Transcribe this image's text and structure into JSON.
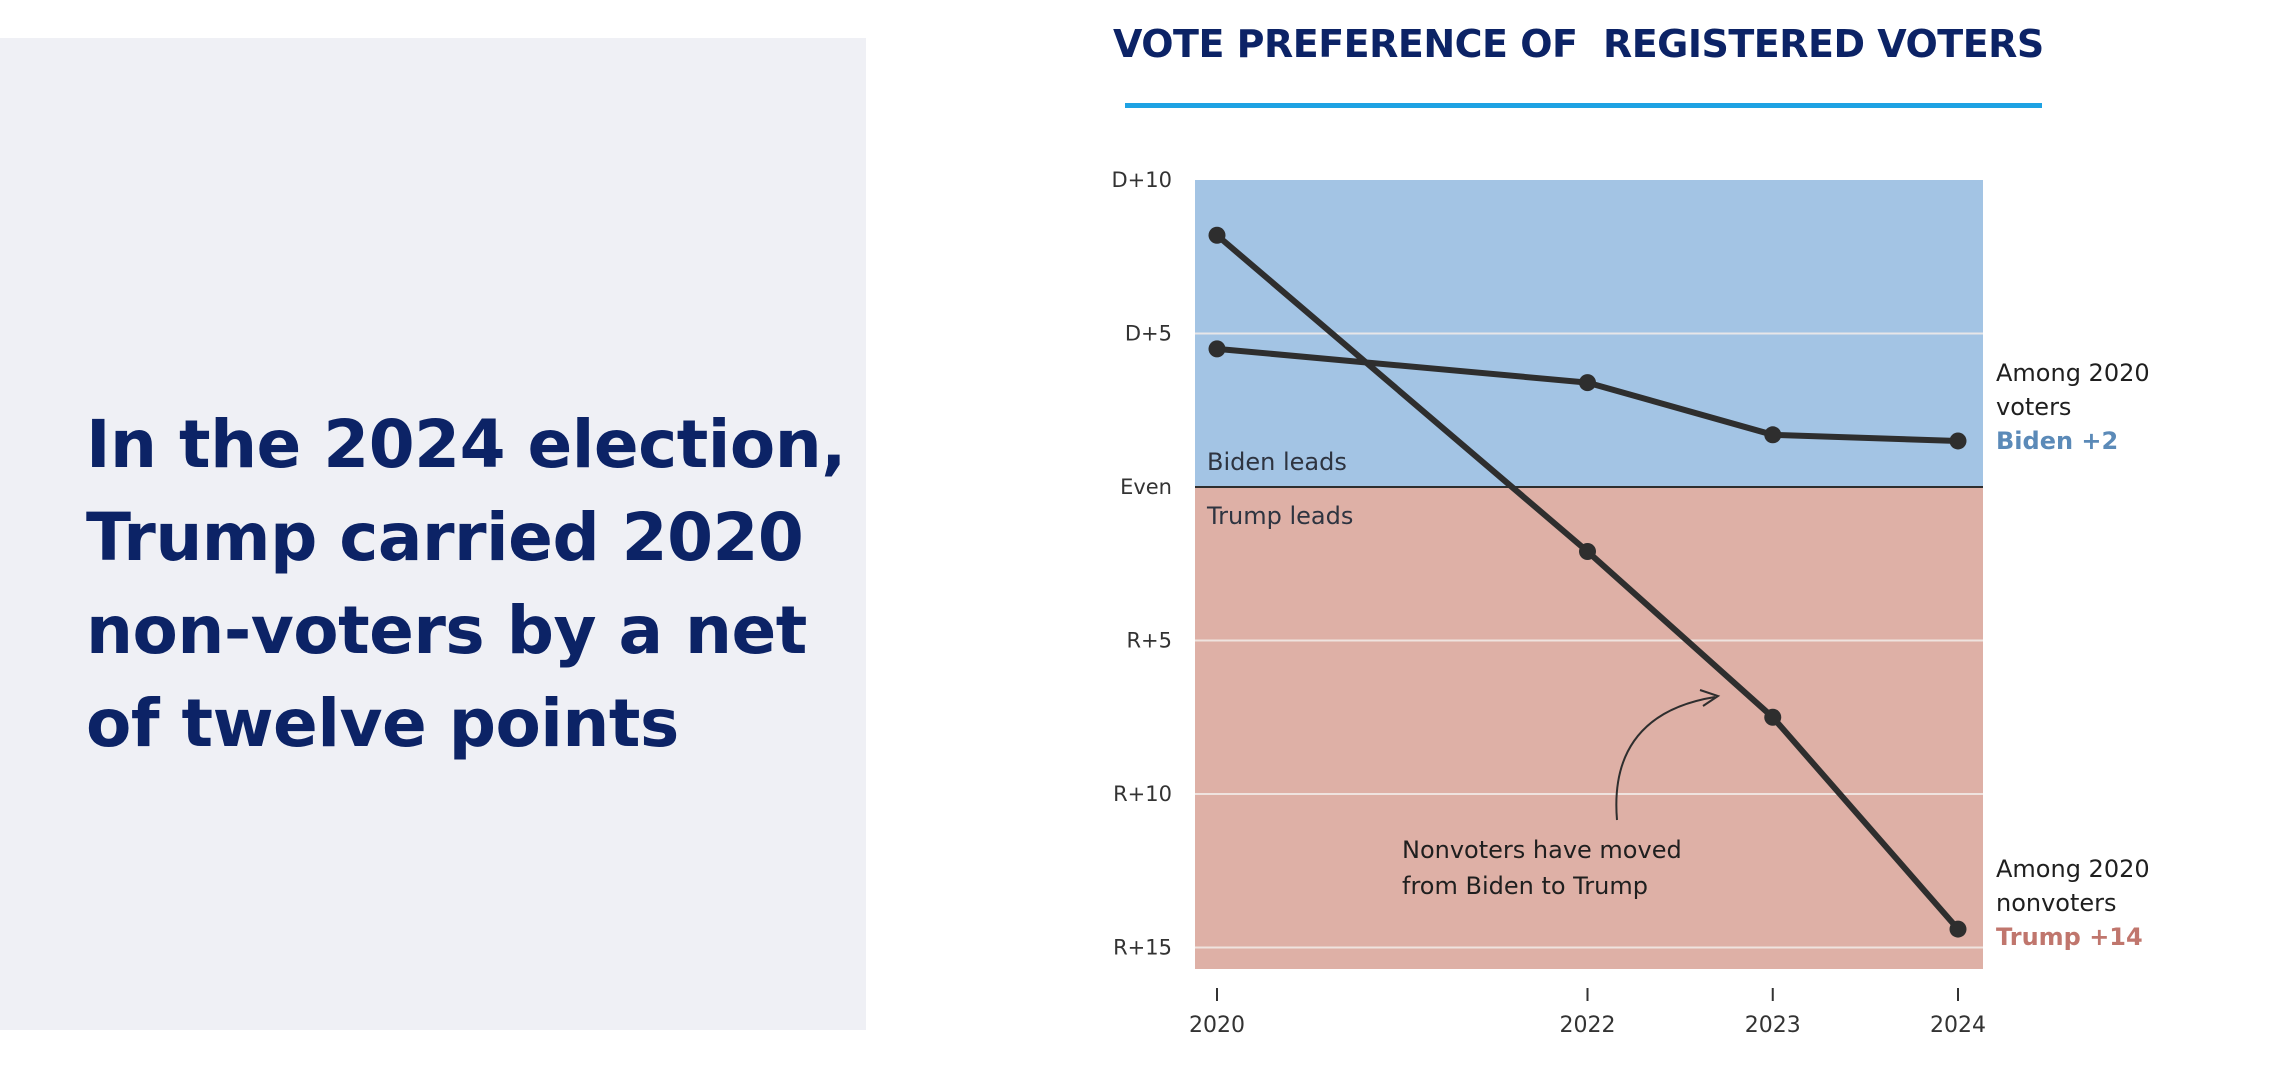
{
  "headline": "In the 2024 election, Trump carried 2020 non-voters by a net of twelve points",
  "chart_data": {
    "type": "line",
    "title": "VOTE PREFERENCE OF  REGISTERED VOTERS",
    "x": [
      2020,
      2022,
      2023,
      2024
    ],
    "x_ticks": [
      "2020",
      "2022",
      "2023",
      "2024"
    ],
    "y_ticks": [
      {
        "value": 10,
        "label": "D+10"
      },
      {
        "value": 5,
        "label": "D+5"
      },
      {
        "value": 0,
        "label": "Even"
      },
      {
        "value": -5,
        "label": "R+5"
      },
      {
        "value": -10,
        "label": "R+10"
      },
      {
        "value": -15,
        "label": "R+15"
      }
    ],
    "ylim": [
      -15.7,
      10
    ],
    "grid": true,
    "regions": {
      "top_label": "Biden leads",
      "bottom_label": "Trump leads",
      "top_color": "#a3c4e4",
      "bottom_color": "#deb0a6"
    },
    "series": [
      {
        "name_lines": [
          "Among 2020",
          "voters"
        ],
        "result": "Biden +2",
        "result_color": "#5b8ab8",
        "values": [
          4.5,
          3.4,
          1.7,
          1.5
        ]
      },
      {
        "name_lines": [
          "Among 2020",
          "nonvoters"
        ],
        "result": "Trump +14",
        "result_color": "#c0766d",
        "values": [
          8.2,
          -2.1,
          -7.5,
          -14.4
        ]
      }
    ],
    "annotation": {
      "lines": [
        "Nonvoters have moved",
        "from Biden to Trump"
      ]
    },
    "line_color": "#2e2e2e"
  }
}
